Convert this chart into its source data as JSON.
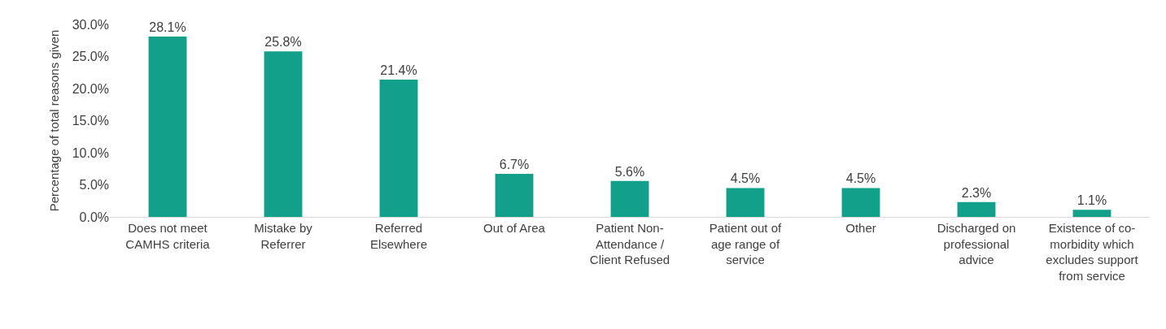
{
  "chart_data": {
    "type": "bar",
    "ylabel": "Percentage of total reasons given",
    "categories": [
      "Does not meet CAMHS criteria",
      "Mistake by Referrer",
      "Referred Elsewhere",
      "Out of Area",
      "Patient Non-Attendance / Client Refused",
      "Patient out of age range of service",
      "Other",
      "Discharged on professional advice",
      "Existence of co-morbidity which excludes support from service"
    ],
    "values": [
      28.1,
      25.8,
      21.4,
      6.7,
      5.6,
      4.5,
      4.5,
      2.3,
      1.1
    ],
    "value_labels": [
      "28.1%",
      "25.8%",
      "21.4%",
      "6.7%",
      "5.6%",
      "4.5%",
      "4.5%",
      "2.3%",
      "1.1%"
    ],
    "color": "#13a08a",
    "ylim": [
      0,
      30
    ],
    "yticks": [
      {
        "value": 0,
        "label": "0.0%"
      },
      {
        "value": 5,
        "label": "5.0%"
      },
      {
        "value": 10,
        "label": "10.0%"
      },
      {
        "value": 15,
        "label": "15.0%"
      },
      {
        "value": 20,
        "label": "20.0%"
      },
      {
        "value": 25,
        "label": "25.0%"
      },
      {
        "value": 30,
        "label": "30.0%"
      }
    ],
    "grid": false,
    "legend": false
  }
}
